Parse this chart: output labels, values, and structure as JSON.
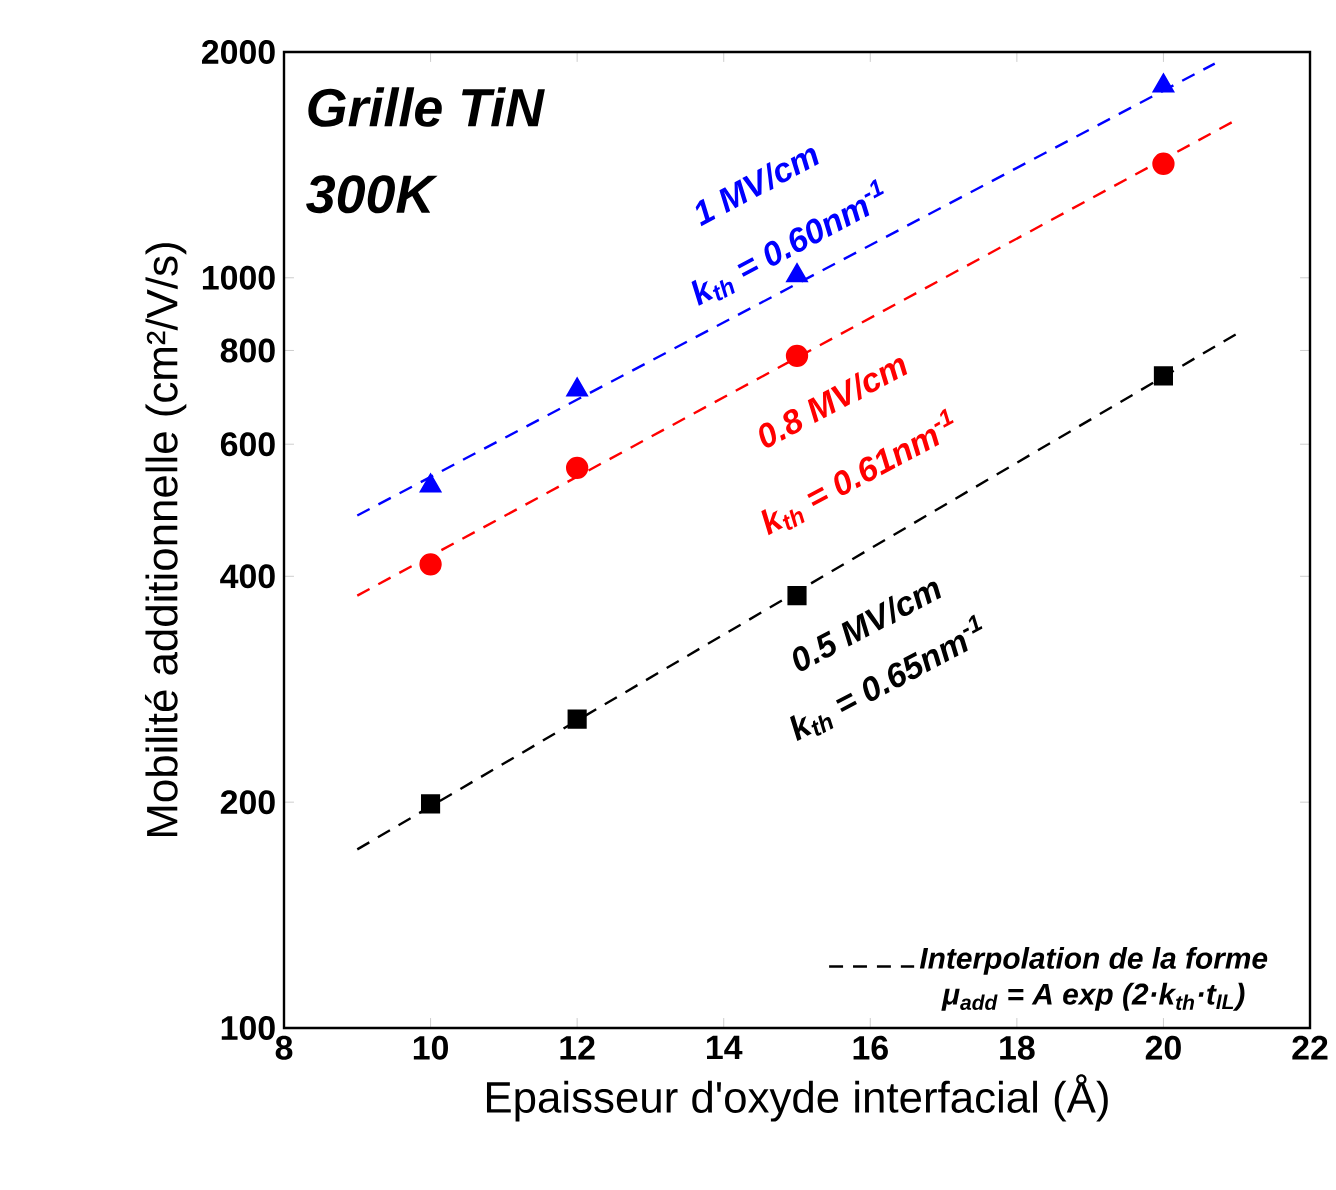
{
  "chart_data": {
    "type": "scatter",
    "title": "Grille TiN",
    "subtitle": "300K",
    "xlabel": "Epaisseur d'oxyde interfacial (Å)",
    "ylabel": "Mobilité additionnelle (cm²/V/s)",
    "x": [
      10,
      12,
      15,
      20
    ],
    "series": [
      {
        "color": "#0000ff",
        "marker": "triangle",
        "values": [
          528,
          709,
          1007,
          1803
        ]
      },
      {
        "color": "#ff0000",
        "marker": "circle",
        "values": [
          415,
          558,
          787,
          1419
        ]
      },
      {
        "color": "#000000",
        "marker": "square",
        "values": [
          199,
          258,
          377,
          740
        ]
      },
      {
        "type": "line",
        "color": "#0000ff",
        "line_style": "dashed",
        "x": [
          9,
          20.7
        ],
        "values": [
          482,
          1930
        ]
      },
      {
        "type": "line",
        "color": "#ff0000",
        "line_style": "dashed",
        "x": [
          9,
          21
        ],
        "values": [
          377,
          1625
        ]
      },
      {
        "type": "line",
        "color": "#000000",
        "line_style": "dashed",
        "name": "Interpolation de la forme",
        "x": [
          9,
          21
        ],
        "values": [
          173,
          842
        ]
      }
    ],
    "annotations": [
      "1 MV/cm",
      "k$_{th}$ = 0.60nm$^{-1}$",
      "0.8 MV/cm",
      "k$_{th}$ = 0.61nm$^{-1}$",
      "0.5 MV/cm",
      "k$_{th}$ = 0.65nm$^{-1}$",
      "μ$_{add}$ = A exp (2·k$_{th}$·t$_{IL}$)"
    ],
    "log": "y",
    "legend": "bottom right",
    "xlim": [
      8,
      22
    ],
    "xticks": [
      8,
      10,
      12,
      14,
      16,
      18,
      20,
      22
    ],
    "ylim": [
      100,
      2000
    ],
    "yticks": [
      100,
      200,
      400,
      600,
      800,
      1000,
      2000
    ]
  }
}
